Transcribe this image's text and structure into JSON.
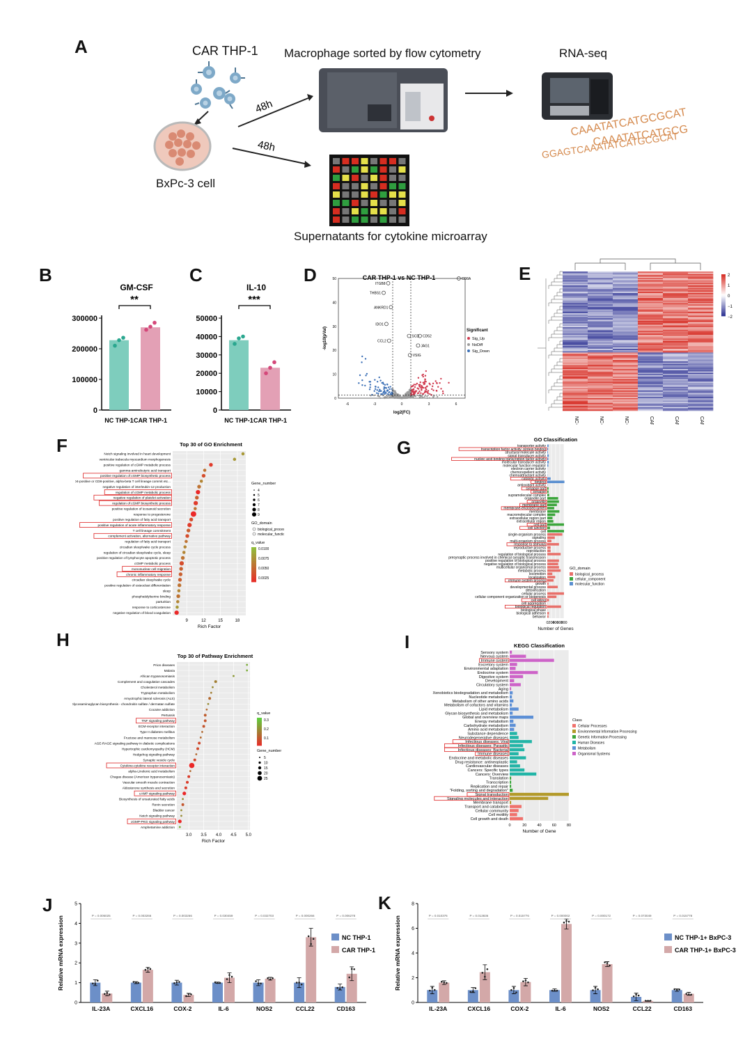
{
  "panels": {
    "a": "A",
    "b": "B",
    "c": "C",
    "d": "D",
    "e": "E",
    "f": "F",
    "g": "G",
    "h": "H",
    "i": "I",
    "j": "J",
    "k": "K"
  },
  "schematic": {
    "car_thp1": "CAR  THP-1",
    "bxpc3": "BxPc-3 cell",
    "sorted": "Macrophage sorted by flow cytometry",
    "rnaseq": "RNA-seq",
    "supernatant": "Supernatants for cytokine microarray",
    "time1": "48h",
    "time2": "48h",
    "dna_line1": "CAAATATCATGCGCAT",
    "dna_line2": "CAAATATCATGCG",
    "dna_line3": "GGAGTCAAATATCATGCGCAT",
    "colors": {
      "red": "#d62d20",
      "yellow": "#e5e04a",
      "green": "#2f9e3f",
      "grey": "#777777",
      "black": "#111111"
    }
  },
  "chart_b": {
    "type": "bar",
    "title": "GM-CSF",
    "categories": [
      "NC THP-1",
      "CAR THP-1"
    ],
    "values": [
      228000,
      270000
    ],
    "points": [
      [
        210000,
        228000,
        236000
      ],
      [
        262000,
        272000,
        285000
      ]
    ],
    "ylim": [
      0,
      300000
    ],
    "yticks": [
      0,
      100000,
      200000,
      300000
    ],
    "sig": "**",
    "colors": [
      "#7ecdbd",
      "#e3a0b5"
    ],
    "dot_colors": [
      "#2aa78f",
      "#d4487a"
    ]
  },
  "chart_c": {
    "type": "bar",
    "title": "IL-10",
    "categories": [
      "NC THP-1",
      "CAR THP-1"
    ],
    "values": [
      38000,
      23000
    ],
    "points": [
      [
        36000,
        39000,
        40000
      ],
      [
        20000,
        23000,
        26000
      ]
    ],
    "ylim": [
      0,
      50000
    ],
    "yticks": [
      0,
      10000,
      20000,
      30000,
      40000,
      50000
    ],
    "sig": "***",
    "colors": [
      "#7ecdbd",
      "#e3a0b5"
    ],
    "dot_colors": [
      "#2aa78f",
      "#d4487a"
    ]
  },
  "chart_d": {
    "type": "scatter",
    "title": "CAR THP-1 vs NC THP-1",
    "xlabel": "log2(FC)",
    "ylabel": "-log10(pVal)",
    "xlim": [
      -7,
      7
    ],
    "ylim": [
      0,
      50
    ],
    "xticks": [
      -6,
      -3,
      0,
      3,
      6
    ],
    "yticks": [
      0,
      10,
      20,
      30,
      40,
      50
    ],
    "legend_title": "Significant",
    "legend": [
      "Sig_Up",
      "NoDiff",
      "Sig_Down"
    ],
    "colors": {
      "up": "#d03a4e",
      "nodiff": "#9c9c9c",
      "down": "#3b6fb6"
    },
    "labels": [
      {
        "name": "ITGB8",
        "x": -1.5,
        "y": 48
      },
      {
        "name": "THBS1",
        "x": -2.0,
        "y": 44
      },
      {
        "name": "ANKRD1",
        "x": -1.2,
        "y": 38
      },
      {
        "name": "CD8A",
        "x": 6.3,
        "y": 50
      },
      {
        "name": "IDO1",
        "x": -1.7,
        "y": 31
      },
      {
        "name": "CCL2",
        "x": -1.4,
        "y": 24
      },
      {
        "name": "SCD",
        "x": 0.8,
        "y": 26
      },
      {
        "name": "CD52",
        "x": 2.0,
        "y": 26
      },
      {
        "name": "JAG1",
        "x": 1.8,
        "y": 22
      },
      {
        "name": "VSIG",
        "x": 0.9,
        "y": 18
      }
    ]
  },
  "chart_e": {
    "type": "heatmap",
    "columns": [
      "NC-2",
      "NC-1",
      "NC-3",
      "CAR-3",
      "CAR-1",
      "CAR-2"
    ],
    "scale": [
      "2",
      "1",
      "0",
      "−1",
      "−2"
    ],
    "colors": {
      "high": "#d73027",
      "mid": "#ffffff",
      "low": "#313695"
    }
  },
  "chart_f": {
    "type": "scatter",
    "title": "Top 30 of GO Enrichment",
    "xlabel": "Rich Factor",
    "xticks": [
      9,
      12,
      15,
      18
    ],
    "xlim": [
      6.5,
      19.5
    ],
    "terms": [
      "Notch signaling involved in heart development",
      "ventricular trabecula myocardium morphogenesis",
      "positive regulation of cGMP metabolic process",
      "gamma-aminobutyric acid transport",
      "positive regulation of cGMP biosynthetic process",
      "CD4-positive or CD8-positive, alpha-beta T cell lineage commit etc...",
      "negative regulation of interleukin-12 production",
      "regulation of cGMP metabolic process",
      "negative regulation of platelet activation",
      "regulation of cGMP biosynthetic process",
      "positive regulation of icosanoid secretion",
      "response to progesterone",
      "positive regulation of fatty acid transport",
      "positive regulation of acute inflammatory response",
      "T cell lineage commitment",
      "complement activation, alternative pathway",
      "regulation of fatty acid transport",
      "circadian sleep/wake cycle process",
      "regulation of circadian sleep/wake cycle, sleep",
      "positive regulation of lymphocyte apoptotic process",
      "cGMP metabolic process",
      "mononuclear cell migration",
      "chronic inflammatory response",
      "circadian sleep/wake cycle",
      "positive regulation of osteoclast differentiation",
      "sleep",
      "phosphatidylserine binding",
      "parturition",
      "response to corticosterone",
      "negative regulation of blood coagulation"
    ],
    "x": [
      19,
      17.5,
      13.3,
      12.2,
      12.0,
      11.6,
      11.2,
      11.0,
      10.8,
      10.6,
      10.5,
      10.2,
      9.8,
      9.5,
      9.3,
      9.1,
      8.9,
      8.7,
      8.5,
      8.3,
      8.1,
      8.0,
      7.9,
      7.8,
      7.7,
      7.6,
      7.5,
      7.4,
      7.3,
      7.2
    ],
    "size": [
      4,
      4,
      5,
      4,
      5,
      4,
      5,
      6,
      5,
      6,
      4,
      8,
      5,
      6,
      5,
      5,
      4,
      4,
      4,
      5,
      6,
      5,
      5,
      5,
      5,
      4,
      5,
      4,
      4,
      6
    ],
    "q": [
      0.008,
      0.008,
      0.003,
      0.006,
      0.004,
      0.007,
      0.006,
      0.002,
      0.005,
      0.003,
      0.006,
      0.002,
      0.004,
      0.003,
      0.005,
      0.004,
      0.006,
      0.007,
      0.007,
      0.006,
      0.004,
      0.005,
      0.005,
      0.005,
      0.006,
      0.007,
      0.006,
      0.007,
      0.008,
      0.002
    ],
    "highlight": [
      4,
      7,
      8,
      9,
      13,
      15,
      21,
      22
    ],
    "legend_size_title": "Gene_number",
    "legend_sizes": [
      "4",
      "5",
      "6",
      "7",
      "8",
      "9"
    ],
    "legend_domain_title": "GO_domain",
    "legend_domain": [
      "biological_process",
      "molecular_function"
    ],
    "legend_q_title": "q_value",
    "legend_q": [
      "0.0100",
      "0.0075",
      "0.0050",
      "0.0025"
    ]
  },
  "chart_g": {
    "type": "bar",
    "title": "GO Classification",
    "xlabel": "Number of Genes",
    "xticks": [
      "0",
      "200",
      "400",
      "600",
      "800"
    ],
    "xlim": [
      0,
      800
    ],
    "categories": [
      "transporter activity",
      "transcription factor activity, protein binding",
      "structural molecule activity",
      "signal transducer activity",
      "nucleic acid binding transcription factor activity",
      "molecular transducer activity",
      "molecular function regulator",
      "electron carrier activity",
      "chemorepellent activity",
      "chemoattractant activity",
      "catalytic activity",
      "binding",
      "antioxidant activity",
      "synapse part",
      "synapse",
      "supramolecular complex",
      "organelle part",
      "organelle",
      "membrane part",
      "membrane-enclosed lumen",
      "membrane",
      "macromolecular complex",
      "extracellular region part",
      "extracellular region",
      "cell part",
      "cell junction",
      "cell",
      "single-organism process",
      "signaling",
      "multi-organism process",
      "response to stimulus",
      "reproductive process",
      "reproduction",
      "regulation of biological process",
      "presynaptic process involved in chemical synaptic transmission",
      "positive regulation of biological process",
      "negative regulation of biological process",
      "multicellular organismal process",
      "metabolic process",
      "locomotion",
      "localization",
      "immune system process",
      "growth",
      "developmental process",
      "detoxification",
      "cellular process",
      "cellular component organization or biogenesis",
      "cell killing",
      "cell aggregation",
      "biological regulation",
      "biological phase",
      "biological adhesion",
      "behavior"
    ],
    "values": [
      60,
      40,
      30,
      70,
      50,
      70,
      50,
      5,
      5,
      10,
      160,
      820,
      10,
      60,
      60,
      90,
      520,
      560,
      460,
      330,
      580,
      380,
      250,
      290,
      800,
      130,
      800,
      720,
      360,
      200,
      560,
      160,
      160,
      640,
      10,
      560,
      520,
      560,
      640,
      240,
      380,
      300,
      60,
      500,
      10,
      800,
      440,
      80,
      10,
      660,
      10,
      80,
      60
    ],
    "domain": [
      "mf",
      "mf",
      "mf",
      "mf",
      "mf",
      "mf",
      "mf",
      "mf",
      "mf",
      "mf",
      "mf",
      "mf",
      "mf",
      "cc",
      "cc",
      "cc",
      "cc",
      "cc",
      "cc",
      "cc",
      "cc",
      "cc",
      "cc",
      "cc",
      "cc",
      "cc",
      "cc",
      "bp",
      "bp",
      "bp",
      "bp",
      "bp",
      "bp",
      "bp",
      "bp",
      "bp",
      "bp",
      "bp",
      "bp",
      "bp",
      "bp",
      "bp",
      "bp",
      "bp",
      "bp",
      "bp",
      "bp",
      "bp",
      "bp",
      "bp",
      "bp",
      "bp",
      "bp"
    ],
    "highlight": [
      1,
      4,
      10,
      11,
      13,
      14,
      17,
      18,
      19,
      24,
      25,
      30,
      41,
      47,
      49
    ],
    "legend_title": "GO_domain",
    "legend": [
      "biological_process",
      "cellular_component",
      "molecular_function"
    ],
    "colors": {
      "bp": "#e8706a",
      "cc": "#3ca63c",
      "mf": "#5a8fd0"
    }
  },
  "chart_h": {
    "type": "scatter",
    "title": "Top 30 of Pathway Enrichment",
    "xlabel": "Rich Factor",
    "xticks": [
      "3.0",
      "3.5",
      "4.0",
      "4.5",
      "5.0"
    ],
    "xlim": [
      2.6,
      5.05
    ],
    "terms": [
      "Prion diseases",
      "Malaria",
      "African trypanosomiasis",
      "Complement and coagulation cascades",
      "Cholesterol metabolism",
      "Tryptophan metabolism",
      "Amyotrophic lateral sclerosis (ALS)",
      "Glycosaminoglycan biosynthesis - chondroitin sulfate / dermatan sulfate",
      "Cocaine addiction",
      "Pertussis",
      "TNF signaling pathway",
      "ECM-receptor interaction",
      "Type II diabetes mellitus",
      "Fructose and mannose metabolism",
      "AGE-RAGE signaling pathway in diabetic complications",
      "Hypertrophic cardiomyopathy (HCM)",
      "Hedgehog signaling pathway",
      "Synaptic vesicle cycle",
      "Cytokine-cytokine receptor interaction",
      "alpha-Linolenic acid metabolism",
      "Chagas disease (American trypanosomiasis)",
      "Vascular smooth muscle contraction",
      "Aldosterone synthesis and secretion",
      "cAMP signaling pathway",
      "Biosynthesis of unsaturated fatty acids",
      "Renin secretion",
      "Bladder cancer",
      "Notch signaling pathway",
      "cGMP-PKG signaling pathway",
      "Amphetamine addiction"
    ],
    "x": [
      4.95,
      4.95,
      4.5,
      3.9,
      3.8,
      3.75,
      3.7,
      3.65,
      3.6,
      3.55,
      3.55,
      3.5,
      3.45,
      3.4,
      3.35,
      3.3,
      3.25,
      3.2,
      3.1,
      3.05,
      3.0,
      2.95,
      2.9,
      2.85,
      2.8,
      2.8,
      2.75,
      2.75,
      2.7,
      2.7
    ],
    "size": [
      5,
      5,
      5,
      10,
      5,
      5,
      10,
      5,
      5,
      10,
      10,
      10,
      5,
      5,
      10,
      10,
      5,
      10,
      25,
      5,
      10,
      10,
      10,
      15,
      5,
      10,
      5,
      5,
      15,
      5
    ],
    "q": [
      0.25,
      0.25,
      0.22,
      0.18,
      0.2,
      0.18,
      0.15,
      0.2,
      0.15,
      0.13,
      0.12,
      0.12,
      0.15,
      0.15,
      0.1,
      0.1,
      0.15,
      0.1,
      0.05,
      0.15,
      0.08,
      0.08,
      0.08,
      0.05,
      0.2,
      0.12,
      0.2,
      0.2,
      0.05,
      0.25
    ],
    "highlight": [
      10,
      18,
      23,
      28
    ],
    "legend_q_title": "q_value",
    "legend_q": [
      "0.3",
      "0.2",
      "0.1"
    ],
    "legend_size_title": "Gene_number",
    "legend_sizes": [
      "5",
      "10",
      "15",
      "20",
      "25"
    ]
  },
  "chart_i": {
    "type": "bar",
    "title": "KEGG Classification",
    "xlabel": "Number of Gene",
    "xticks": [
      "0",
      "20",
      "40",
      "60",
      "80"
    ],
    "xlim": [
      0,
      80
    ],
    "categories": [
      "Sensory system",
      "Nervous system",
      "Immune system",
      "Excretory system",
      "Environmental adaptation",
      "Endocrine system",
      "Digestive system",
      "Development",
      "Circulatory system",
      "Aging",
      "Xenobiotics biodegradation and metabolism",
      "Nucleotide metabolism",
      "Metabolism of other amino acids",
      "Metabolism of cofactors and vitamins",
      "Lipid metabolism",
      "Glycan biosynthesis and metabolism",
      "Global and overview maps",
      "Energy metabolism",
      "Carbohydrate metabolism",
      "Amino acid metabolism",
      "Substance dependence",
      "Neurodegenerative diseases",
      "Infectious diseases: Viral",
      "Infectious diseases: Parasitic",
      "Infectious diseases: Bacterial",
      "Immune diseases",
      "Endocrine and metabolic diseases",
      "Drug resistance: antineoplastic",
      "Cardiovascular diseases",
      "Cancers: Specific types",
      "Cancers: Overview",
      "Translation",
      "Transcription",
      "Replication and repair",
      "\"Folding, sorting and degradation\"",
      "Signal transduction",
      "Signaling molecules and interaction",
      "Membrane transport",
      "Transport and catabolism",
      "Cellular community",
      "Cell motility",
      "Cell growth and death"
    ],
    "values": [
      3,
      22,
      60,
      10,
      8,
      38,
      18,
      6,
      15,
      2,
      4,
      3,
      5,
      3,
      12,
      4,
      32,
      5,
      8,
      6,
      10,
      12,
      30,
      18,
      20,
      12,
      22,
      10,
      14,
      20,
      36,
      2,
      2,
      2,
      4,
      80,
      52,
      2,
      16,
      12,
      10,
      18
    ],
    "group": [
      "org",
      "org",
      "org",
      "org",
      "org",
      "org",
      "org",
      "org",
      "org",
      "org",
      "met",
      "met",
      "met",
      "met",
      "met",
      "met",
      "met",
      "met",
      "met",
      "met",
      "hum",
      "hum",
      "hum",
      "hum",
      "hum",
      "hum",
      "hum",
      "hum",
      "hum",
      "hum",
      "hum",
      "gen",
      "gen",
      "gen",
      "gen",
      "env",
      "env",
      "env",
      "cel",
      "cel",
      "cel",
      "cel"
    ],
    "highlight": [
      2,
      22,
      23,
      24,
      25,
      35,
      36
    ],
    "legend_title": "Class",
    "legend": [
      "Cellular Processes",
      "Environmental Information Processing",
      "Genetic Information Processing",
      "Human Diseases",
      "Metabolism",
      "Organismal Systems"
    ],
    "colors": {
      "cel": "#f0716c",
      "env": "#b39a2a",
      "gen": "#3aa63a",
      "hum": "#22b5a7",
      "met": "#5c8fd6",
      "org": "#cd63c8"
    }
  },
  "chart_j": {
    "type": "bar",
    "ylabel": "Relative mRNA expression",
    "categories": [
      "IL-23A",
      "CXCL16",
      "COX-2",
      "IL-6",
      "NOS2",
      "CCL22",
      "CD163"
    ],
    "series": [
      {
        "name": "NC THP-1",
        "values": [
          1.0,
          1.0,
          1.0,
          1.0,
          1.0,
          1.0,
          0.78
        ]
      },
      {
        "name": "CAR THP-1",
        "values": [
          0.45,
          1.65,
          0.38,
          1.25,
          1.2,
          3.3,
          1.45
        ]
      }
    ],
    "errors": [
      [
        0.15,
        0.05,
        0.12,
        0.03,
        0.15,
        0.25,
        0.15
      ],
      [
        0.12,
        0.12,
        0.08,
        0.25,
        0.07,
        0.45,
        0.35
      ]
    ],
    "pvalues": [
      "P = 0.006025",
      "P = 0.003266",
      "P = 0.003266",
      "P = 0.030459",
      "P = 0.032703",
      "P = 0.000266",
      "P = 0.006278"
    ],
    "ylim": [
      0,
      5
    ],
    "yticks": [
      "0",
      "1",
      "2",
      "3",
      "4",
      "5"
    ],
    "colors": [
      "#6c8fc8",
      "#d3a8a8"
    ]
  },
  "chart_k": {
    "type": "bar",
    "ylabel": "Relative mRNA expression",
    "categories": [
      "IL-23A",
      "CXCL16",
      "COX-2",
      "IL-6",
      "NOS2",
      "CCL22",
      "CD163"
    ],
    "series": [
      {
        "name": "NC THP-1+ BxPC-3",
        "values": [
          1.0,
          1.0,
          1.0,
          1.0,
          1.0,
          0.45,
          1.0
        ]
      },
      {
        "name": "CAR THP-1+ BxPC-3",
        "values": [
          1.6,
          2.45,
          1.65,
          6.35,
          3.1,
          0.12,
          0.7
        ]
      }
    ],
    "errors": [
      [
        0.3,
        0.2,
        0.3,
        0.1,
        0.3,
        0.3,
        0.1
      ],
      [
        0.15,
        0.6,
        0.3,
        0.4,
        0.2,
        0.03,
        0.12
      ]
    ],
    "pvalues": [
      "P = 0.010376",
      "P = 0.013836",
      "P = 0.015776",
      "P = 0.000002",
      "P = 0.000172",
      "P = 0.073049",
      "P = 0.015778"
    ],
    "ylim": [
      0,
      8
    ],
    "yticks": [
      "0",
      "2",
      "4",
      "6",
      "8"
    ],
    "colors": [
      "#6c8fc8",
      "#d3a8a8"
    ]
  }
}
